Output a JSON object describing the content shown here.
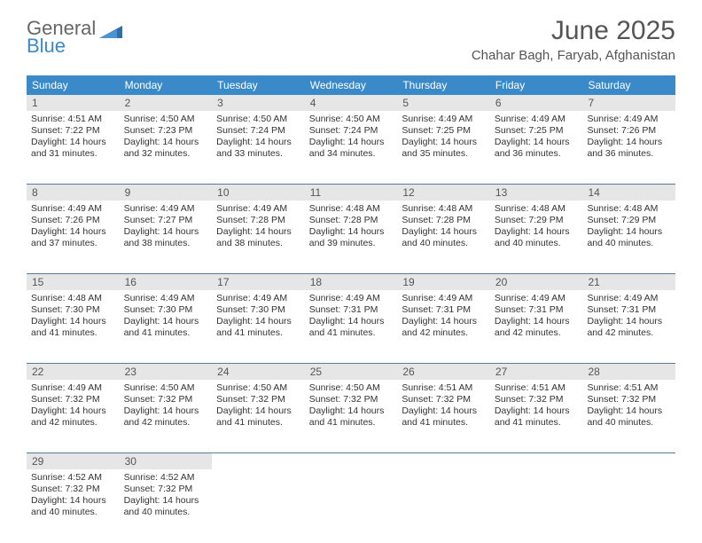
{
  "logo": {
    "name1": "General",
    "name2": "Blue"
  },
  "title": "June 2025",
  "location": "Chahar Bagh, Faryab, Afghanistan",
  "colors": {
    "header_bg": "#3a8ac9",
    "daynum_bg": "#e6e6e6",
    "week_border": "#5a7a9a",
    "text": "#333333",
    "title_text": "#555555"
  },
  "day_names": [
    "Sunday",
    "Monday",
    "Tuesday",
    "Wednesday",
    "Thursday",
    "Friday",
    "Saturday"
  ],
  "weeks": [
    [
      {
        "n": "1",
        "sr": "Sunrise: 4:51 AM",
        "ss": "Sunset: 7:22 PM",
        "d1": "Daylight: 14 hours",
        "d2": "and 31 minutes."
      },
      {
        "n": "2",
        "sr": "Sunrise: 4:50 AM",
        "ss": "Sunset: 7:23 PM",
        "d1": "Daylight: 14 hours",
        "d2": "and 32 minutes."
      },
      {
        "n": "3",
        "sr": "Sunrise: 4:50 AM",
        "ss": "Sunset: 7:24 PM",
        "d1": "Daylight: 14 hours",
        "d2": "and 33 minutes."
      },
      {
        "n": "4",
        "sr": "Sunrise: 4:50 AM",
        "ss": "Sunset: 7:24 PM",
        "d1": "Daylight: 14 hours",
        "d2": "and 34 minutes."
      },
      {
        "n": "5",
        "sr": "Sunrise: 4:49 AM",
        "ss": "Sunset: 7:25 PM",
        "d1": "Daylight: 14 hours",
        "d2": "and 35 minutes."
      },
      {
        "n": "6",
        "sr": "Sunrise: 4:49 AM",
        "ss": "Sunset: 7:25 PM",
        "d1": "Daylight: 14 hours",
        "d2": "and 36 minutes."
      },
      {
        "n": "7",
        "sr": "Sunrise: 4:49 AM",
        "ss": "Sunset: 7:26 PM",
        "d1": "Daylight: 14 hours",
        "d2": "and 36 minutes."
      }
    ],
    [
      {
        "n": "8",
        "sr": "Sunrise: 4:49 AM",
        "ss": "Sunset: 7:26 PM",
        "d1": "Daylight: 14 hours",
        "d2": "and 37 minutes."
      },
      {
        "n": "9",
        "sr": "Sunrise: 4:49 AM",
        "ss": "Sunset: 7:27 PM",
        "d1": "Daylight: 14 hours",
        "d2": "and 38 minutes."
      },
      {
        "n": "10",
        "sr": "Sunrise: 4:49 AM",
        "ss": "Sunset: 7:28 PM",
        "d1": "Daylight: 14 hours",
        "d2": "and 38 minutes."
      },
      {
        "n": "11",
        "sr": "Sunrise: 4:48 AM",
        "ss": "Sunset: 7:28 PM",
        "d1": "Daylight: 14 hours",
        "d2": "and 39 minutes."
      },
      {
        "n": "12",
        "sr": "Sunrise: 4:48 AM",
        "ss": "Sunset: 7:28 PM",
        "d1": "Daylight: 14 hours",
        "d2": "and 40 minutes."
      },
      {
        "n": "13",
        "sr": "Sunrise: 4:48 AM",
        "ss": "Sunset: 7:29 PM",
        "d1": "Daylight: 14 hours",
        "d2": "and 40 minutes."
      },
      {
        "n": "14",
        "sr": "Sunrise: 4:48 AM",
        "ss": "Sunset: 7:29 PM",
        "d1": "Daylight: 14 hours",
        "d2": "and 40 minutes."
      }
    ],
    [
      {
        "n": "15",
        "sr": "Sunrise: 4:48 AM",
        "ss": "Sunset: 7:30 PM",
        "d1": "Daylight: 14 hours",
        "d2": "and 41 minutes."
      },
      {
        "n": "16",
        "sr": "Sunrise: 4:49 AM",
        "ss": "Sunset: 7:30 PM",
        "d1": "Daylight: 14 hours",
        "d2": "and 41 minutes."
      },
      {
        "n": "17",
        "sr": "Sunrise: 4:49 AM",
        "ss": "Sunset: 7:30 PM",
        "d1": "Daylight: 14 hours",
        "d2": "and 41 minutes."
      },
      {
        "n": "18",
        "sr": "Sunrise: 4:49 AM",
        "ss": "Sunset: 7:31 PM",
        "d1": "Daylight: 14 hours",
        "d2": "and 41 minutes."
      },
      {
        "n": "19",
        "sr": "Sunrise: 4:49 AM",
        "ss": "Sunset: 7:31 PM",
        "d1": "Daylight: 14 hours",
        "d2": "and 42 minutes."
      },
      {
        "n": "20",
        "sr": "Sunrise: 4:49 AM",
        "ss": "Sunset: 7:31 PM",
        "d1": "Daylight: 14 hours",
        "d2": "and 42 minutes."
      },
      {
        "n": "21",
        "sr": "Sunrise: 4:49 AM",
        "ss": "Sunset: 7:31 PM",
        "d1": "Daylight: 14 hours",
        "d2": "and 42 minutes."
      }
    ],
    [
      {
        "n": "22",
        "sr": "Sunrise: 4:49 AM",
        "ss": "Sunset: 7:32 PM",
        "d1": "Daylight: 14 hours",
        "d2": "and 42 minutes."
      },
      {
        "n": "23",
        "sr": "Sunrise: 4:50 AM",
        "ss": "Sunset: 7:32 PM",
        "d1": "Daylight: 14 hours",
        "d2": "and 42 minutes."
      },
      {
        "n": "24",
        "sr": "Sunrise: 4:50 AM",
        "ss": "Sunset: 7:32 PM",
        "d1": "Daylight: 14 hours",
        "d2": "and 41 minutes."
      },
      {
        "n": "25",
        "sr": "Sunrise: 4:50 AM",
        "ss": "Sunset: 7:32 PM",
        "d1": "Daylight: 14 hours",
        "d2": "and 41 minutes."
      },
      {
        "n": "26",
        "sr": "Sunrise: 4:51 AM",
        "ss": "Sunset: 7:32 PM",
        "d1": "Daylight: 14 hours",
        "d2": "and 41 minutes."
      },
      {
        "n": "27",
        "sr": "Sunrise: 4:51 AM",
        "ss": "Sunset: 7:32 PM",
        "d1": "Daylight: 14 hours",
        "d2": "and 41 minutes."
      },
      {
        "n": "28",
        "sr": "Sunrise: 4:51 AM",
        "ss": "Sunset: 7:32 PM",
        "d1": "Daylight: 14 hours",
        "d2": "and 40 minutes."
      }
    ],
    [
      {
        "n": "29",
        "sr": "Sunrise: 4:52 AM",
        "ss": "Sunset: 7:32 PM",
        "d1": "Daylight: 14 hours",
        "d2": "and 40 minutes."
      },
      {
        "n": "30",
        "sr": "Sunrise: 4:52 AM",
        "ss": "Sunset: 7:32 PM",
        "d1": "Daylight: 14 hours",
        "d2": "and 40 minutes."
      },
      null,
      null,
      null,
      null,
      null
    ]
  ]
}
